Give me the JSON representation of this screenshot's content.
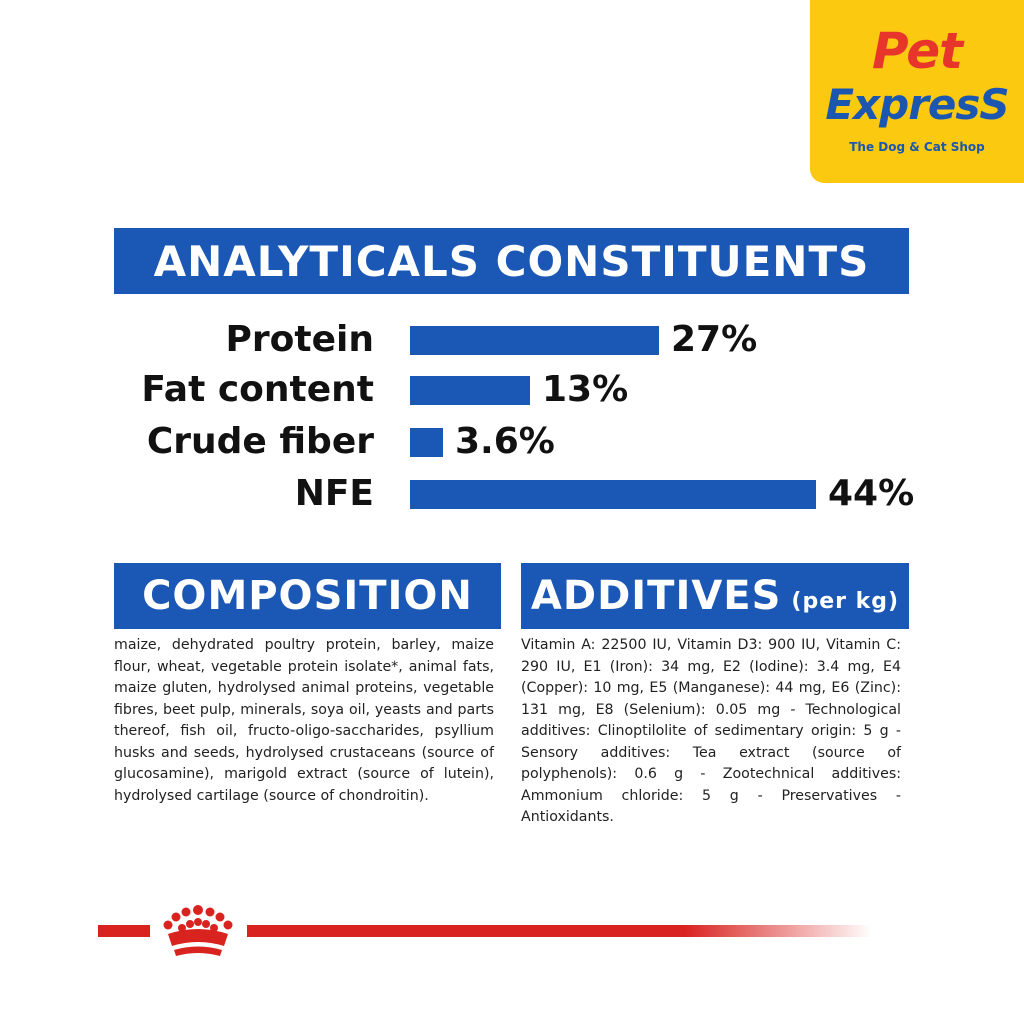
{
  "logo": {
    "line1": "Pet",
    "line2": "ExpresS",
    "tagline": "The Dog & Cat Shop",
    "background": "#fcc911",
    "red": "#e8352c",
    "blue": "#1b56b0"
  },
  "accent_color": "#1b57b5",
  "footer_color": "#d9231f",
  "analytical": {
    "title": "ANALYTICALS CONSTITUENTS",
    "rows": [
      {
        "label": "Protein",
        "value": "27%",
        "percent": 27
      },
      {
        "label": "Fat content",
        "value": "13%",
        "percent": 13
      },
      {
        "label": "Crude fiber",
        "value": "3.6%",
        "percent": 3.6
      },
      {
        "label": "NFE",
        "value": "44%",
        "percent": 44
      }
    ]
  },
  "composition": {
    "title": "COMPOSITION",
    "text": "maize, dehydrated poultry protein, barley, maize flour, wheat, vegetable protein isolate*, animal fats, maize gluten, hydrolysed animal proteins, vegetable fibres, beet pulp, minerals, soya oil, yeasts and parts thereof, fish oil, fructo-oligo-saccharides, psyllium husks and seeds, hydrolysed crustaceans (source of glucosamine), marigold extract (source of lutein), hydrolysed cartilage (source of chondroitin)."
  },
  "additives": {
    "title": "ADDITIVES",
    "title_suffix": "(per kg)",
    "text": "Vitamin A: 22500 IU, Vitamin D3: 900 IU, Vitamin C: 290 IU, E1 (Iron): 34 mg, E2 (Iodine): 3.4 mg, E4 (Copper): 10 mg, E5 (Manganese): 44 mg, E6 (Zinc): 131 mg, E8 (Selenium): 0.05 mg - Technological additives: Clinoptilolite of sedimentary origin: 5 g - Sensory additives: Tea extract (source of polyphenols): 0.6 g - Zootechnical additives: Ammonium chloride: 5 g - Preservatives - Antioxidants."
  },
  "footer": {
    "crown_icon": "royal-canin-crown-icon"
  }
}
